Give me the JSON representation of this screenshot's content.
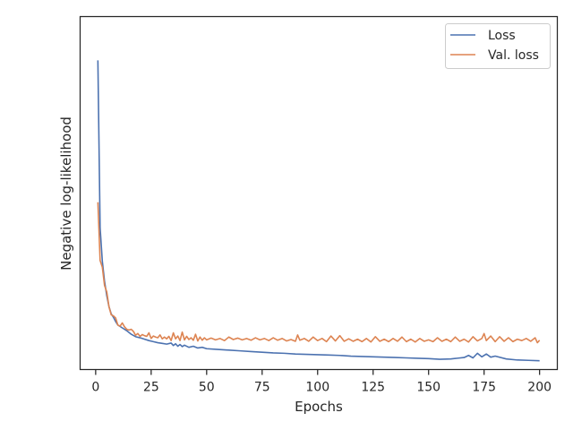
{
  "chart_data": {
    "type": "line",
    "title": "",
    "xlabel": "Epochs",
    "ylabel": "Negative log-likelihood",
    "xlim": [
      -7,
      208
    ],
    "ylim": [
      0,
      1
    ],
    "x_ticks": [
      0,
      25,
      50,
      75,
      100,
      125,
      150,
      175,
      200
    ],
    "y_ticks_shown": false,
    "grid": false,
    "legend": "top-right",
    "series": [
      {
        "name": "Loss",
        "color": "#4c72b0",
        "points": [
          [
            1,
            0.876
          ],
          [
            2,
            0.402
          ],
          [
            3,
            0.307
          ],
          [
            4,
            0.25
          ],
          [
            5,
            0.209
          ],
          [
            6,
            0.178
          ],
          [
            7,
            0.158
          ],
          [
            8,
            0.148
          ],
          [
            9,
            0.136
          ],
          [
            10,
            0.126
          ],
          [
            12,
            0.118
          ],
          [
            14,
            0.11
          ],
          [
            16,
            0.1
          ],
          [
            18,
            0.093
          ],
          [
            20,
            0.09
          ],
          [
            22,
            0.086
          ],
          [
            24,
            0.082
          ],
          [
            26,
            0.079
          ],
          [
            28,
            0.076
          ],
          [
            30,
            0.074
          ],
          [
            32,
            0.072
          ],
          [
            34,
            0.075
          ],
          [
            35,
            0.068
          ],
          [
            36,
            0.073
          ],
          [
            37,
            0.066
          ],
          [
            38,
            0.071
          ],
          [
            39,
            0.065
          ],
          [
            40,
            0.069
          ],
          [
            42,
            0.063
          ],
          [
            44,
            0.066
          ],
          [
            46,
            0.061
          ],
          [
            48,
            0.063
          ],
          [
            50,
            0.059
          ],
          [
            55,
            0.057
          ],
          [
            60,
            0.055
          ],
          [
            65,
            0.053
          ],
          [
            70,
            0.051
          ],
          [
            75,
            0.049
          ],
          [
            80,
            0.047
          ],
          [
            85,
            0.046
          ],
          [
            90,
            0.044
          ],
          [
            95,
            0.043
          ],
          [
            100,
            0.042
          ],
          [
            105,
            0.041
          ],
          [
            110,
            0.04
          ],
          [
            115,
            0.038
          ],
          [
            120,
            0.037
          ],
          [
            125,
            0.036
          ],
          [
            130,
            0.035
          ],
          [
            135,
            0.034
          ],
          [
            140,
            0.033
          ],
          [
            145,
            0.032
          ],
          [
            150,
            0.031
          ],
          [
            155,
            0.029
          ],
          [
            160,
            0.03
          ],
          [
            163,
            0.032
          ],
          [
            166,
            0.034
          ],
          [
            168,
            0.04
          ],
          [
            170,
            0.033
          ],
          [
            172,
            0.046
          ],
          [
            174,
            0.036
          ],
          [
            176,
            0.044
          ],
          [
            178,
            0.035
          ],
          [
            180,
            0.038
          ],
          [
            185,
            0.03
          ],
          [
            190,
            0.027
          ],
          [
            195,
            0.026
          ],
          [
            200,
            0.025
          ]
        ]
      },
      {
        "name": "Val. loss",
        "color": "#dd8452",
        "points": [
          [
            1,
            0.474
          ],
          [
            2,
            0.309
          ],
          [
            3,
            0.29
          ],
          [
            4,
            0.238
          ],
          [
            5,
            0.22
          ],
          [
            6,
            0.178
          ],
          [
            7,
            0.155
          ],
          [
            8,
            0.152
          ],
          [
            9,
            0.146
          ],
          [
            10,
            0.126
          ],
          [
            11,
            0.123
          ],
          [
            12,
            0.132
          ],
          [
            13,
            0.121
          ],
          [
            14,
            0.114
          ],
          [
            15,
            0.112
          ],
          [
            16,
            0.114
          ],
          [
            17,
            0.108
          ],
          [
            18,
            0.097
          ],
          [
            19,
            0.102
          ],
          [
            20,
            0.094
          ],
          [
            21,
            0.099
          ],
          [
            22,
            0.096
          ],
          [
            23,
            0.094
          ],
          [
            24,
            0.104
          ],
          [
            25,
            0.088
          ],
          [
            26,
            0.095
          ],
          [
            27,
            0.092
          ],
          [
            28,
            0.09
          ],
          [
            29,
            0.098
          ],
          [
            30,
            0.087
          ],
          [
            31,
            0.092
          ],
          [
            32,
            0.087
          ],
          [
            33,
            0.094
          ],
          [
            34,
            0.082
          ],
          [
            35,
            0.104
          ],
          [
            36,
            0.087
          ],
          [
            37,
            0.095
          ],
          [
            38,
            0.082
          ],
          [
            39,
            0.106
          ],
          [
            40,
            0.084
          ],
          [
            41,
            0.094
          ],
          [
            42,
            0.085
          ],
          [
            43,
            0.09
          ],
          [
            44,
            0.083
          ],
          [
            45,
            0.1
          ],
          [
            46,
            0.081
          ],
          [
            47,
            0.092
          ],
          [
            48,
            0.083
          ],
          [
            49,
            0.09
          ],
          [
            50,
            0.084
          ],
          [
            52,
            0.089
          ],
          [
            54,
            0.084
          ],
          [
            56,
            0.088
          ],
          [
            58,
            0.082
          ],
          [
            60,
            0.092
          ],
          [
            62,
            0.085
          ],
          [
            64,
            0.089
          ],
          [
            66,
            0.084
          ],
          [
            68,
            0.088
          ],
          [
            70,
            0.083
          ],
          [
            72,
            0.09
          ],
          [
            74,
            0.084
          ],
          [
            76,
            0.088
          ],
          [
            78,
            0.082
          ],
          [
            80,
            0.09
          ],
          [
            82,
            0.083
          ],
          [
            84,
            0.088
          ],
          [
            86,
            0.081
          ],
          [
            88,
            0.085
          ],
          [
            90,
            0.08
          ],
          [
            91,
            0.098
          ],
          [
            92,
            0.083
          ],
          [
            94,
            0.088
          ],
          [
            96,
            0.08
          ],
          [
            98,
            0.092
          ],
          [
            100,
            0.082
          ],
          [
            102,
            0.088
          ],
          [
            104,
            0.079
          ],
          [
            106,
            0.095
          ],
          [
            108,
            0.081
          ],
          [
            110,
            0.096
          ],
          [
            112,
            0.08
          ],
          [
            114,
            0.087
          ],
          [
            116,
            0.08
          ],
          [
            118,
            0.086
          ],
          [
            120,
            0.079
          ],
          [
            122,
            0.088
          ],
          [
            124,
            0.078
          ],
          [
            126,
            0.093
          ],
          [
            128,
            0.08
          ],
          [
            130,
            0.086
          ],
          [
            132,
            0.079
          ],
          [
            134,
            0.088
          ],
          [
            136,
            0.08
          ],
          [
            138,
            0.092
          ],
          [
            140,
            0.079
          ],
          [
            142,
            0.086
          ],
          [
            144,
            0.078
          ],
          [
            146,
            0.088
          ],
          [
            148,
            0.08
          ],
          [
            150,
            0.084
          ],
          [
            152,
            0.079
          ],
          [
            154,
            0.09
          ],
          [
            156,
            0.08
          ],
          [
            158,
            0.086
          ],
          [
            160,
            0.079
          ],
          [
            162,
            0.092
          ],
          [
            164,
            0.08
          ],
          [
            166,
            0.086
          ],
          [
            168,
            0.078
          ],
          [
            170,
            0.093
          ],
          [
            172,
            0.081
          ],
          [
            174,
            0.088
          ],
          [
            175,
            0.102
          ],
          [
            176,
            0.082
          ],
          [
            178,
            0.095
          ],
          [
            180,
            0.079
          ],
          [
            182,
            0.093
          ],
          [
            184,
            0.08
          ],
          [
            186,
            0.09
          ],
          [
            188,
            0.079
          ],
          [
            190,
            0.086
          ],
          [
            192,
            0.082
          ],
          [
            194,
            0.088
          ],
          [
            196,
            0.08
          ],
          [
            198,
            0.09
          ],
          [
            199,
            0.076
          ],
          [
            200,
            0.083
          ]
        ]
      }
    ]
  }
}
